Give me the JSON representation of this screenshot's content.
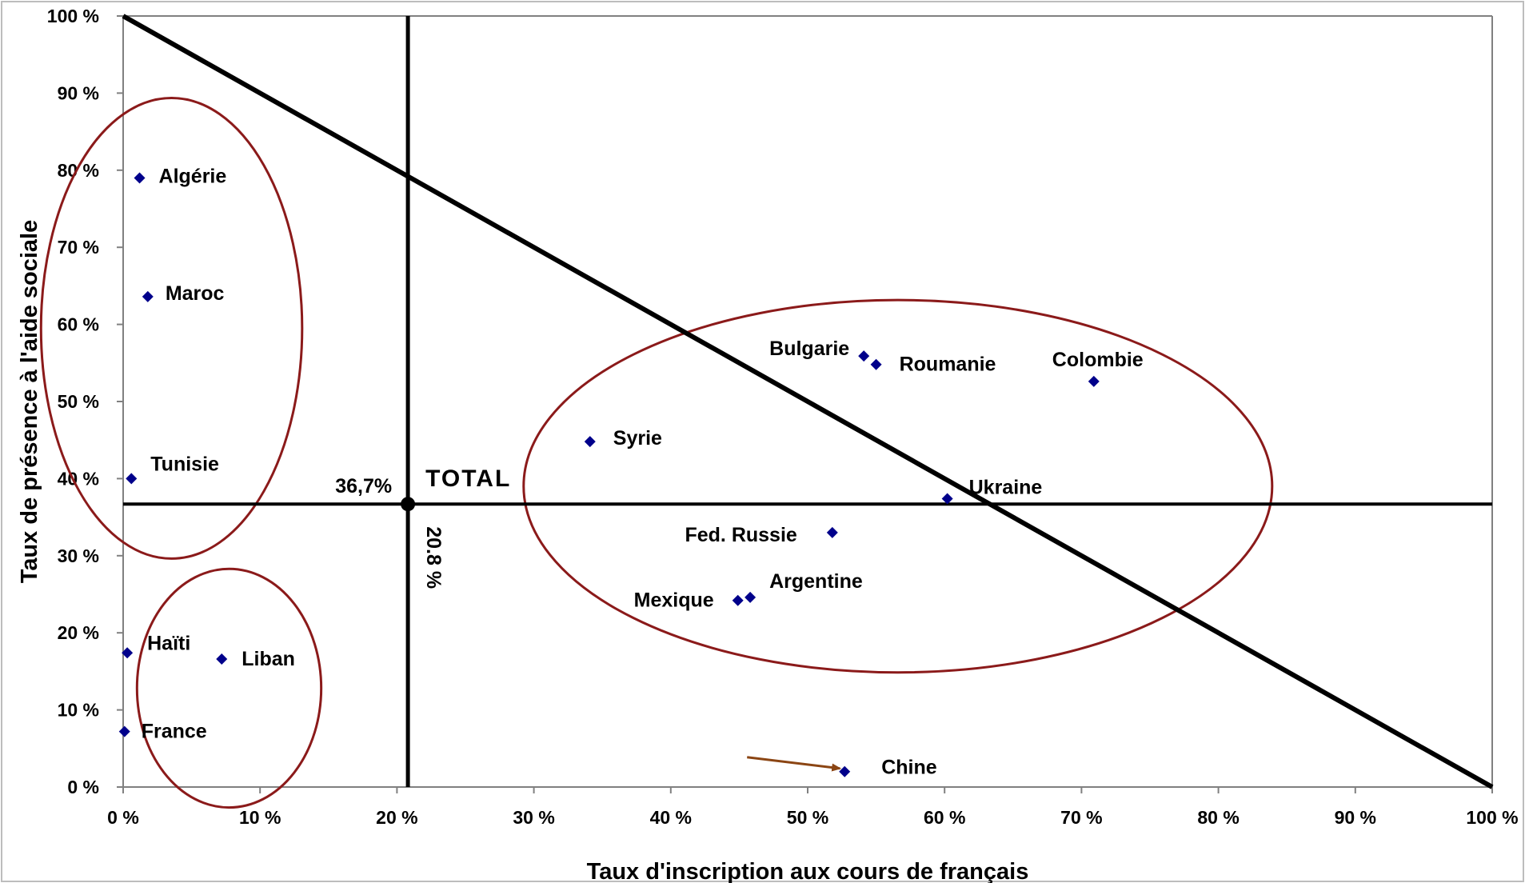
{
  "chart_data": {
    "type": "scatter",
    "xlabel": "Taux d'inscription aux cours de français",
    "ylabel": "Taux de présence à l'aide sociale",
    "xlim": [
      0,
      100
    ],
    "ylim": [
      0,
      100
    ],
    "x_ticks": [
      "0 %",
      "10 %",
      "20 %",
      "30 %",
      "40 %",
      "50 %",
      "60 %",
      "70 %",
      "80 %",
      "90 %",
      "100 %"
    ],
    "y_ticks": [
      "0 %",
      "10 %",
      "20 %",
      "30 %",
      "40 %",
      "50 %",
      "60 %",
      "70 %",
      "80 %",
      "90 %",
      "100 %"
    ],
    "grid": false,
    "marker_color": "#00008B",
    "points": [
      {
        "label": "Algérie",
        "x": 1.2,
        "y": 79
      },
      {
        "label": "Maroc",
        "x": 1.8,
        "y": 63.6
      },
      {
        "label": "Tunisie",
        "x": 0.6,
        "y": 40
      },
      {
        "label": "Haïti",
        "x": 0.3,
        "y": 17.4
      },
      {
        "label": "Liban",
        "x": 7.2,
        "y": 16.6
      },
      {
        "label": "France",
        "x": 0.1,
        "y": 7.2
      },
      {
        "label": "Syrie",
        "x": 34.1,
        "y": 44.8
      },
      {
        "label": "Bulgarie",
        "x": 54.1,
        "y": 55.9
      },
      {
        "label": "Roumanie",
        "x": 55,
        "y": 54.8
      },
      {
        "label": "Colombie",
        "x": 70.9,
        "y": 52.6
      },
      {
        "label": "Ukraine",
        "x": 60.2,
        "y": 37.4
      },
      {
        "label": "Fed. Russie",
        "x": 51.8,
        "y": 33
      },
      {
        "label": "Argentine",
        "x": 45.8,
        "y": 24.6
      },
      {
        "label": "Mexique",
        "x": 44.9,
        "y": 24.2
      },
      {
        "label": "Chine",
        "x": 52.7,
        "y": 2
      }
    ],
    "total": {
      "label": "TOTAL",
      "x": 20.8,
      "y": 36.7,
      "x_label": "20.8 %",
      "y_label": "36,7%"
    },
    "reference_lines": [
      {
        "type": "vertical",
        "x": 20.8
      },
      {
        "type": "horizontal",
        "y": 36.7
      },
      {
        "type": "diagonal",
        "from": [
          0,
          100
        ],
        "to": [
          100,
          0
        ]
      }
    ],
    "groups": [
      {
        "members": [
          "Algérie",
          "Maroc",
          "Tunisie"
        ],
        "shape": "ellipse",
        "color": "#8B1A1A"
      },
      {
        "members": [
          "Haïti",
          "Liban",
          "France"
        ],
        "shape": "ellipse",
        "color": "#8B1A1A"
      },
      {
        "members": [
          "Syrie",
          "Bulgarie",
          "Roumanie",
          "Colombie",
          "Ukraine",
          "Fed. Russie",
          "Argentine",
          "Mexique"
        ],
        "shape": "ellipse",
        "color": "#8B1A1A"
      }
    ],
    "annotation_arrow": {
      "target": "Chine",
      "color": "#8B4513"
    }
  }
}
